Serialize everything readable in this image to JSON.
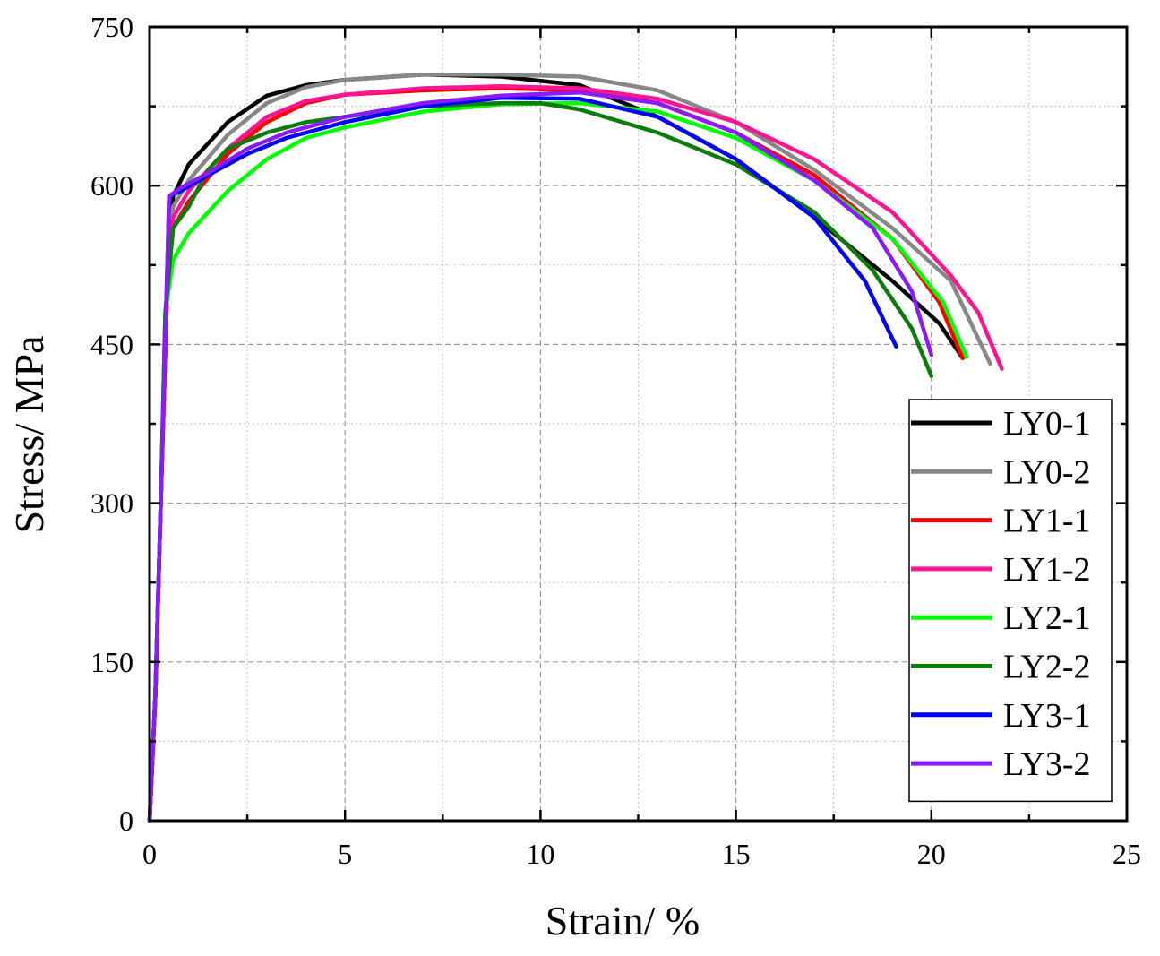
{
  "chart_data": {
    "type": "line",
    "title": "",
    "xlabel": "Strain/ %",
    "ylabel": "Stress/ MPa",
    "xlim": [
      0,
      25
    ],
    "ylim": [
      0,
      750
    ],
    "xticks": [
      0,
      5,
      10,
      15,
      20,
      25
    ],
    "yticks": [
      0,
      150,
      300,
      450,
      600,
      750
    ],
    "xtick_labels": [
      "0",
      "5",
      "10",
      "15",
      "20",
      "25"
    ],
    "ytick_labels": [
      "0",
      "150",
      "300",
      "450",
      "600",
      "750"
    ],
    "grid": true,
    "legend_position": "bottom-right",
    "series": [
      {
        "name": "LY0-1",
        "color": "#000000",
        "points": [
          [
            0,
            0
          ],
          [
            0.15,
            120
          ],
          [
            0.3,
            320
          ],
          [
            0.45,
            500
          ],
          [
            0.6,
            590
          ],
          [
            1,
            620
          ],
          [
            2,
            660
          ],
          [
            3,
            685
          ],
          [
            4,
            695
          ],
          [
            5,
            700
          ],
          [
            7,
            705
          ],
          [
            9,
            703
          ],
          [
            11,
            695
          ],
          [
            13,
            665
          ],
          [
            15,
            625
          ],
          [
            17,
            570
          ],
          [
            19,
            510
          ],
          [
            20.2,
            470
          ],
          [
            20.8,
            437
          ]
        ]
      },
      {
        "name": "LY0-2",
        "color": "#878787",
        "points": [
          [
            0,
            0
          ],
          [
            0.15,
            120
          ],
          [
            0.3,
            320
          ],
          [
            0.45,
            500
          ],
          [
            0.6,
            580
          ],
          [
            1,
            605
          ],
          [
            2,
            648
          ],
          [
            3,
            678
          ],
          [
            4,
            693
          ],
          [
            5,
            700
          ],
          [
            7,
            705
          ],
          [
            9,
            705
          ],
          [
            11,
            703
          ],
          [
            13,
            690
          ],
          [
            15,
            660
          ],
          [
            17,
            615
          ],
          [
            19,
            560
          ],
          [
            20.5,
            510
          ],
          [
            21.5,
            432
          ]
        ]
      },
      {
        "name": "LY1-1",
        "color": "#ff0000",
        "points": [
          [
            0,
            0
          ],
          [
            0.15,
            120
          ],
          [
            0.3,
            320
          ],
          [
            0.45,
            500
          ],
          [
            0.6,
            560
          ],
          [
            1,
            585
          ],
          [
            2,
            630
          ],
          [
            3,
            660
          ],
          [
            4,
            678
          ],
          [
            5,
            686
          ],
          [
            7,
            690
          ],
          [
            9,
            692
          ],
          [
            11,
            690
          ],
          [
            13,
            678
          ],
          [
            15,
            650
          ],
          [
            17,
            610
          ],
          [
            19,
            550
          ],
          [
            20.2,
            490
          ],
          [
            20.8,
            437
          ]
        ]
      },
      {
        "name": "LY1-2",
        "color": "#ff1493",
        "points": [
          [
            0,
            0
          ],
          [
            0.15,
            120
          ],
          [
            0.3,
            320
          ],
          [
            0.45,
            500
          ],
          [
            0.6,
            570
          ],
          [
            1,
            595
          ],
          [
            2,
            635
          ],
          [
            3,
            665
          ],
          [
            4,
            680
          ],
          [
            5,
            686
          ],
          [
            7,
            692
          ],
          [
            9,
            694
          ],
          [
            11,
            692
          ],
          [
            13,
            682
          ],
          [
            15,
            660
          ],
          [
            17,
            625
          ],
          [
            19,
            575
          ],
          [
            20.5,
            515
          ],
          [
            21.2,
            480
          ],
          [
            21.8,
            427
          ]
        ]
      },
      {
        "name": "LY2-1",
        "color": "#00ff00",
        "points": [
          [
            0,
            0
          ],
          [
            0.15,
            120
          ],
          [
            0.3,
            320
          ],
          [
            0.4,
            480
          ],
          [
            0.6,
            530
          ],
          [
            1,
            555
          ],
          [
            2,
            595
          ],
          [
            3,
            625
          ],
          [
            4,
            645
          ],
          [
            5,
            655
          ],
          [
            7,
            670
          ],
          [
            9,
            677
          ],
          [
            11,
            678
          ],
          [
            13,
            670
          ],
          [
            15,
            645
          ],
          [
            17,
            605
          ],
          [
            19,
            550
          ],
          [
            20.3,
            490
          ],
          [
            20.9,
            438
          ]
        ]
      },
      {
        "name": "LY2-2",
        "color": "#0b7d0b",
        "points": [
          [
            0,
            0
          ],
          [
            0.15,
            120
          ],
          [
            0.3,
            320
          ],
          [
            0.4,
            480
          ],
          [
            0.6,
            560
          ],
          [
            1,
            580
          ],
          [
            1.5,
            615
          ],
          [
            2,
            635
          ],
          [
            3,
            650
          ],
          [
            4,
            660
          ],
          [
            5,
            665
          ],
          [
            7,
            675
          ],
          [
            9,
            678
          ],
          [
            10,
            678
          ],
          [
            11,
            672
          ],
          [
            13,
            650
          ],
          [
            15,
            620
          ],
          [
            17,
            575
          ],
          [
            18.5,
            520
          ],
          [
            19.5,
            465
          ],
          [
            20,
            420
          ]
        ]
      },
      {
        "name": "LY3-1",
        "color": "#0000ff",
        "points": [
          [
            0,
            0
          ],
          [
            0.15,
            120
          ],
          [
            0.3,
            320
          ],
          [
            0.45,
            520
          ],
          [
            0.5,
            590
          ],
          [
            0.8,
            595
          ],
          [
            1.5,
            610
          ],
          [
            2.5,
            630
          ],
          [
            3.5,
            645
          ],
          [
            5,
            660
          ],
          [
            7,
            675
          ],
          [
            9,
            683
          ],
          [
            11,
            682
          ],
          [
            13,
            665
          ],
          [
            15,
            625
          ],
          [
            17,
            570
          ],
          [
            18.3,
            510
          ],
          [
            19.1,
            448
          ]
        ]
      },
      {
        "name": "LY3-2",
        "color": "#8c1aff",
        "points": [
          [
            0,
            0
          ],
          [
            0.15,
            120
          ],
          [
            0.3,
            320
          ],
          [
            0.45,
            520
          ],
          [
            0.5,
            590
          ],
          [
            0.8,
            598
          ],
          [
            1.5,
            612
          ],
          [
            2.5,
            635
          ],
          [
            3.5,
            650
          ],
          [
            5,
            665
          ],
          [
            7,
            678
          ],
          [
            9,
            685
          ],
          [
            11,
            688
          ],
          [
            13,
            678
          ],
          [
            15,
            650
          ],
          [
            17,
            605
          ],
          [
            18.5,
            560
          ],
          [
            19.5,
            500
          ],
          [
            20,
            440
          ]
        ]
      }
    ]
  }
}
